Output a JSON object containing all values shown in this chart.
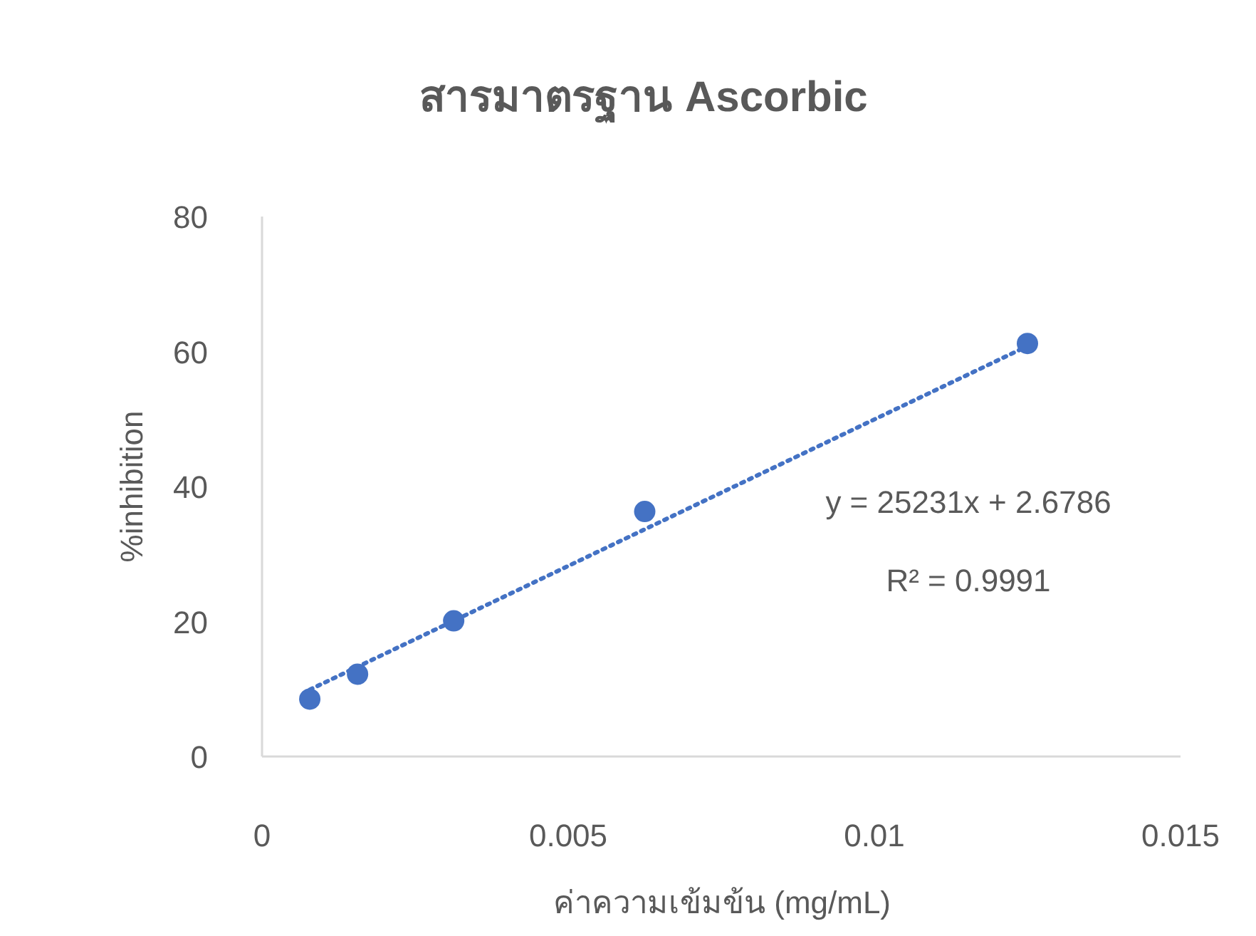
{
  "chart_data": {
    "type": "scatter",
    "title": "สารมาตรฐาน Ascorbic",
    "xlabel": "ค่าความเข้มข้น (mg/mL)",
    "ylabel": "%inhibition",
    "xlim": [
      0,
      0.015
    ],
    "ylim": [
      0,
      80
    ],
    "xticks": [
      0,
      0.005,
      0.01,
      0.015
    ],
    "yticks": [
      0,
      20,
      40,
      60,
      80
    ],
    "grid": false,
    "series": [
      {
        "color": "#4472c4",
        "marker": "circle",
        "x": [
          0.00078,
          0.00156,
          0.00313,
          0.00625,
          0.0125
        ],
        "values": [
          8.5,
          12.2,
          20.1,
          36.3,
          61.2
        ]
      },
      {
        "type": "line",
        "color": "#4472c4",
        "line_style": "dotted",
        "x": [
          0.00078,
          0.0125
        ],
        "values": [
          9.9,
          60.8
        ]
      }
    ],
    "annotations": [
      "y = 25231x + 2.6786",
      "R² = 0.9991"
    ]
  }
}
